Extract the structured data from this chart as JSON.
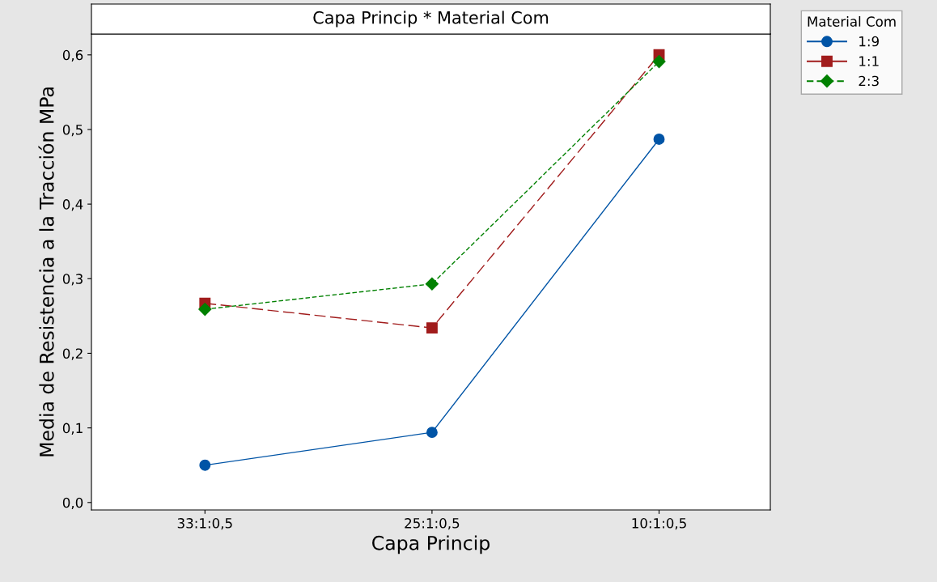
{
  "chart_data": {
    "type": "line",
    "title": "Capa Princip * Material Com",
    "xlabel": "Capa Princip",
    "ylabel": "Media de Resistencia a la Tracción MPa",
    "legend_title": "Material Com",
    "categories": [
      "33:1:0,5",
      "25:1:0,5",
      "10:1:0,5"
    ],
    "series": [
      {
        "name": "1:9",
        "color": "#0054a6",
        "values": [
          0.05,
          0.094,
          0.487
        ],
        "marker": "circle",
        "line_style": "solid"
      },
      {
        "name": "1:1",
        "color": "#a11c1c",
        "values": [
          0.267,
          0.234,
          0.6
        ],
        "marker": "square",
        "line_style": "dashed"
      },
      {
        "name": "2:3",
        "color": "#008000",
        "values": [
          0.259,
          0.293,
          0.591
        ],
        "marker": "diamond",
        "line_style": "dotted"
      }
    ],
    "ylim": [
      -0.01,
      0.628
    ],
    "yticks": [
      {
        "value": 0,
        "label": "0,0"
      },
      {
        "value": 0.1,
        "label": "0,1"
      },
      {
        "value": 0.2,
        "label": "0,2"
      },
      {
        "value": 0.3,
        "label": "0,3"
      },
      {
        "value": 0.4,
        "label": "0,4"
      },
      {
        "value": 0.5,
        "label": "0,5"
      },
      {
        "value": 0.6,
        "label": "0,6"
      }
    ],
    "grid": false,
    "legend": "top right"
  }
}
